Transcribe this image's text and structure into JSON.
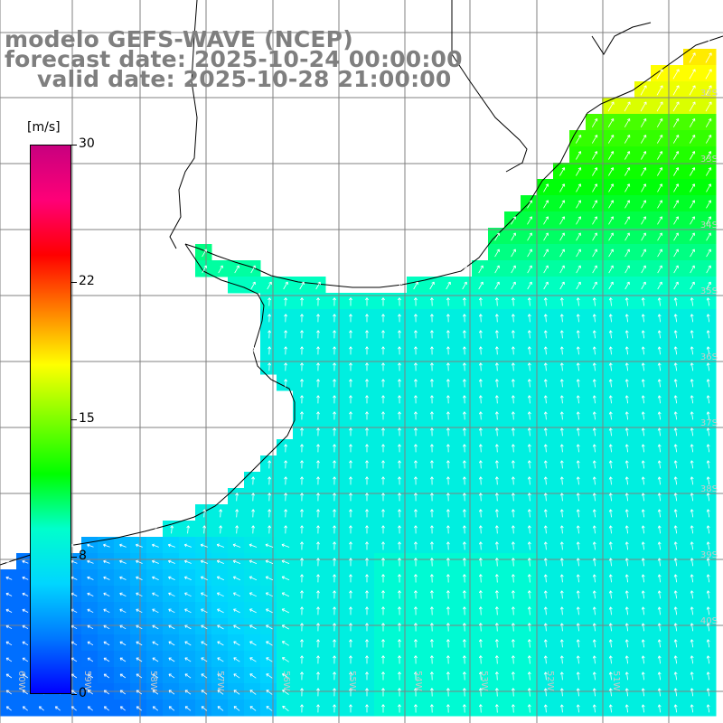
{
  "title": {
    "model": "modelo GEFS-WAVE (NCEP)",
    "forecast": "forecast date: 2025-10-24 00:00:00",
    "valid": "valid date: 2025-10-28 21:00:00"
  },
  "colorbar": {
    "unit": "[m/s]",
    "min": 0,
    "max": 30,
    "ticks": [
      {
        "value": 30,
        "label": "30"
      },
      {
        "value": 22.5,
        "label": "22"
      },
      {
        "value": 15,
        "label": "15"
      },
      {
        "value": 7.5,
        "label": "8"
      },
      {
        "value": 0,
        "label": "0"
      }
    ],
    "colors": [
      "#0000ff",
      "#0077ff",
      "#00d6ff",
      "#00ffcc",
      "#00ff00",
      "#7fff00",
      "#ffff00",
      "#ff7f00",
      "#ff0000",
      "#ff0077",
      "#c8007f"
    ]
  },
  "map": {
    "field": "wind speed and direction",
    "region": "Rio de la Plata / Uruguay coast",
    "lat_labels": [
      "32S",
      "33S",
      "34S",
      "35S",
      "36S",
      "37S",
      "38S",
      "39S",
      "40S"
    ],
    "lon_labels": [
      "60W",
      "59W",
      "58W",
      "57W",
      "56W",
      "55W",
      "54W",
      "53W",
      "52W",
      "51W"
    ],
    "land_color": "#ffffff",
    "coast_color": "#000000",
    "grid_color": "#808080",
    "arrow_color": "#ffffff"
  }
}
